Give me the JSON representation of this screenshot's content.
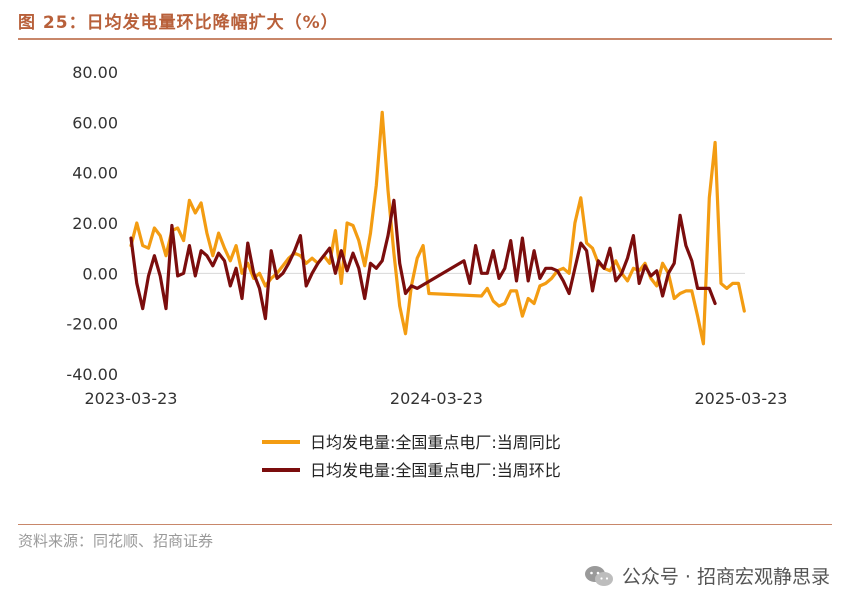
{
  "title": "图 25：日均发电量环比降幅扩大（%）",
  "source": "资料来源：同花顺、招商证券",
  "watermark": "公众号 · 招商宏观静思录",
  "colors": {
    "series_yoy": "#f39c12",
    "series_wow": "#7b0d0d",
    "title": "#b8603a"
  },
  "chart_data": {
    "type": "line",
    "title": "",
    "xlabel": "",
    "ylabel": "",
    "ylim": [
      -40,
      80
    ],
    "yticks": [
      "80.00",
      "60.00",
      "40.00",
      "20.00",
      "0.00",
      "-20.00",
      "-40.00"
    ],
    "x_tick_labels": [
      "2023-03-23",
      "2024-03-23",
      "2025-03-23"
    ],
    "x_range": [
      "2023-03-23",
      "2025-04-10"
    ],
    "legend_position": "bottom",
    "series": [
      {
        "name": "日均发电量:全国重点电厂:当周同比",
        "color": "#f39c12",
        "points": [
          [
            "2023-03-23",
            11
          ],
          [
            "2023-03-30",
            20
          ],
          [
            "2023-04-06",
            11
          ],
          [
            "2023-04-13",
            10
          ],
          [
            "2023-04-20",
            18
          ],
          [
            "2023-04-27",
            15
          ],
          [
            "2023-05-04",
            7
          ],
          [
            "2023-05-11",
            17
          ],
          [
            "2023-05-18",
            18
          ],
          [
            "2023-05-25",
            13
          ],
          [
            "2023-06-01",
            29
          ],
          [
            "2023-06-08",
            24
          ],
          [
            "2023-06-15",
            28
          ],
          [
            "2023-06-22",
            16
          ],
          [
            "2023-06-29",
            7
          ],
          [
            "2023-07-06",
            16
          ],
          [
            "2023-07-13",
            10
          ],
          [
            "2023-07-20",
            5
          ],
          [
            "2023-07-27",
            11
          ],
          [
            "2023-08-03",
            0
          ],
          [
            "2023-08-10",
            4
          ],
          [
            "2023-08-17",
            -2
          ],
          [
            "2023-08-24",
            0
          ],
          [
            "2023-08-31",
            -5
          ],
          [
            "2023-09-07",
            -2
          ],
          [
            "2023-09-14",
            0
          ],
          [
            "2023-09-21",
            3
          ],
          [
            "2023-09-28",
            6
          ],
          [
            "2023-10-05",
            8
          ],
          [
            "2023-10-12",
            7
          ],
          [
            "2023-10-19",
            4
          ],
          [
            "2023-10-26",
            6
          ],
          [
            "2023-11-02",
            4
          ],
          [
            "2023-11-09",
            7
          ],
          [
            "2023-11-16",
            4
          ],
          [
            "2023-11-23",
            17
          ],
          [
            "2023-11-30",
            -4
          ],
          [
            "2023-12-07",
            20
          ],
          [
            "2023-12-14",
            19
          ],
          [
            "2023-12-21",
            13
          ],
          [
            "2023-12-28",
            3
          ],
          [
            "2024-01-04",
            16
          ],
          [
            "2024-01-11",
            35
          ],
          [
            "2024-01-18",
            64
          ],
          [
            "2024-01-25",
            33
          ],
          [
            "2024-02-01",
            8
          ],
          [
            "2024-02-08",
            -13
          ],
          [
            "2024-02-15",
            -24
          ],
          [
            "2024-02-22",
            -5
          ],
          [
            "2024-02-29",
            6
          ],
          [
            "2024-03-07",
            11
          ],
          [
            "2024-03-14",
            -8
          ],
          [
            "2024-05-16",
            -9
          ],
          [
            "2024-05-23",
            -6
          ],
          [
            "2024-05-30",
            -11
          ],
          [
            "2024-06-06",
            -13
          ],
          [
            "2024-06-13",
            -12
          ],
          [
            "2024-06-20",
            -7
          ],
          [
            "2024-06-27",
            -7
          ],
          [
            "2024-07-04",
            -17
          ],
          [
            "2024-07-11",
            -10
          ],
          [
            "2024-07-18",
            -12
          ],
          [
            "2024-07-25",
            -5
          ],
          [
            "2024-08-01",
            -4
          ],
          [
            "2024-08-08",
            -2
          ],
          [
            "2024-08-15",
            1
          ],
          [
            "2024-08-22",
            2
          ],
          [
            "2024-08-29",
            0
          ],
          [
            "2024-09-05",
            20
          ],
          [
            "2024-09-12",
            30
          ],
          [
            "2024-09-19",
            12
          ],
          [
            "2024-09-26",
            10
          ],
          [
            "2024-10-03",
            4
          ],
          [
            "2024-10-10",
            2
          ],
          [
            "2024-10-17",
            1
          ],
          [
            "2024-10-24",
            5
          ],
          [
            "2024-10-31",
            0
          ],
          [
            "2024-11-07",
            -3
          ],
          [
            "2024-11-14",
            2
          ],
          [
            "2024-11-21",
            1
          ],
          [
            "2024-11-28",
            4
          ],
          [
            "2024-12-05",
            -2
          ],
          [
            "2024-12-12",
            -5
          ],
          [
            "2024-12-19",
            4
          ],
          [
            "2024-12-26",
            0
          ],
          [
            "2025-01-02",
            -10
          ],
          [
            "2025-01-09",
            -8
          ],
          [
            "2025-01-16",
            -7
          ],
          [
            "2025-01-23",
            -7
          ],
          [
            "2025-01-30",
            -17
          ],
          [
            "2025-02-06",
            -28
          ],
          [
            "2025-02-13",
            30
          ],
          [
            "2025-02-20",
            52
          ],
          [
            "2025-02-27",
            -4
          ],
          [
            "2025-03-06",
            -6
          ],
          [
            "2025-03-13",
            -4
          ],
          [
            "2025-03-20",
            -4
          ],
          [
            "2025-03-27",
            -15
          ]
        ]
      },
      {
        "name": "日均发电量:全国重点电厂:当周环比",
        "color": "#7b0d0d",
        "points": [
          [
            "2023-03-23",
            14
          ],
          [
            "2023-03-30",
            -4
          ],
          [
            "2023-04-06",
            -14
          ],
          [
            "2023-04-13",
            -1
          ],
          [
            "2023-04-20",
            7
          ],
          [
            "2023-04-27",
            -1
          ],
          [
            "2023-05-04",
            -14
          ],
          [
            "2023-05-11",
            19
          ],
          [
            "2023-05-18",
            -1
          ],
          [
            "2023-05-25",
            0
          ],
          [
            "2023-06-01",
            11
          ],
          [
            "2023-06-08",
            -1
          ],
          [
            "2023-06-15",
            9
          ],
          [
            "2023-06-22",
            7
          ],
          [
            "2023-06-29",
            3
          ],
          [
            "2023-07-06",
            8
          ],
          [
            "2023-07-13",
            5
          ],
          [
            "2023-07-20",
            -5
          ],
          [
            "2023-07-27",
            2
          ],
          [
            "2023-08-03",
            -10
          ],
          [
            "2023-08-10",
            12
          ],
          [
            "2023-08-17",
            0
          ],
          [
            "2023-08-24",
            -6
          ],
          [
            "2023-08-31",
            -18
          ],
          [
            "2023-09-07",
            9
          ],
          [
            "2023-09-14",
            -2
          ],
          [
            "2023-09-21",
            0
          ],
          [
            "2023-09-28",
            4
          ],
          [
            "2023-10-05",
            9
          ],
          [
            "2023-10-12",
            15
          ],
          [
            "2023-10-19",
            -5
          ],
          [
            "2023-10-26",
            0
          ],
          [
            "2023-11-02",
            4
          ],
          [
            "2023-11-09",
            7
          ],
          [
            "2023-11-16",
            10
          ],
          [
            "2023-11-23",
            0
          ],
          [
            "2023-11-30",
            9
          ],
          [
            "2023-12-07",
            1
          ],
          [
            "2023-12-14",
            8
          ],
          [
            "2023-12-21",
            2
          ],
          [
            "2023-12-28",
            -10
          ],
          [
            "2024-01-04",
            4
          ],
          [
            "2024-01-11",
            2
          ],
          [
            "2024-01-18",
            5
          ],
          [
            "2024-01-25",
            15
          ],
          [
            "2024-02-01",
            29
          ],
          [
            "2024-02-08",
            4
          ],
          [
            "2024-02-15",
            -8
          ],
          [
            "2024-02-22",
            -5
          ],
          [
            "2024-02-29",
            -6
          ],
          [
            "2024-04-25",
            5
          ],
          [
            "2024-05-02",
            -4
          ],
          [
            "2024-05-09",
            11
          ],
          [
            "2024-05-16",
            0
          ],
          [
            "2024-05-23",
            0
          ],
          [
            "2024-05-30",
            9
          ],
          [
            "2024-06-06",
            -2
          ],
          [
            "2024-06-13",
            2
          ],
          [
            "2024-06-20",
            13
          ],
          [
            "2024-06-27",
            -3
          ],
          [
            "2024-07-04",
            14
          ],
          [
            "2024-07-11",
            -3
          ],
          [
            "2024-07-18",
            9
          ],
          [
            "2024-07-25",
            -2
          ],
          [
            "2024-08-01",
            2
          ],
          [
            "2024-08-08",
            2
          ],
          [
            "2024-08-15",
            1
          ],
          [
            "2024-08-22",
            -3
          ],
          [
            "2024-08-29",
            -8
          ],
          [
            "2024-09-05",
            2
          ],
          [
            "2024-09-12",
            12
          ],
          [
            "2024-09-19",
            9
          ],
          [
            "2024-09-26",
            -7
          ],
          [
            "2024-10-03",
            5
          ],
          [
            "2024-10-10",
            2
          ],
          [
            "2024-10-17",
            10
          ],
          [
            "2024-10-24",
            -3
          ],
          [
            "2024-10-31",
            0
          ],
          [
            "2024-11-07",
            6
          ],
          [
            "2024-11-14",
            15
          ],
          [
            "2024-11-21",
            -4
          ],
          [
            "2024-11-28",
            3
          ],
          [
            "2024-12-05",
            -1
          ],
          [
            "2024-12-12",
            1
          ],
          [
            "2024-12-19",
            -9
          ],
          [
            "2024-12-26",
            0
          ],
          [
            "2025-01-02",
            4
          ],
          [
            "2025-01-09",
            23
          ],
          [
            "2025-01-16",
            11
          ],
          [
            "2025-01-23",
            5
          ],
          [
            "2025-01-30",
            -6
          ],
          [
            "2025-02-06",
            -6
          ],
          [
            "2025-02-13",
            -6
          ],
          [
            "2025-02-20",
            -12
          ]
        ]
      }
    ]
  }
}
